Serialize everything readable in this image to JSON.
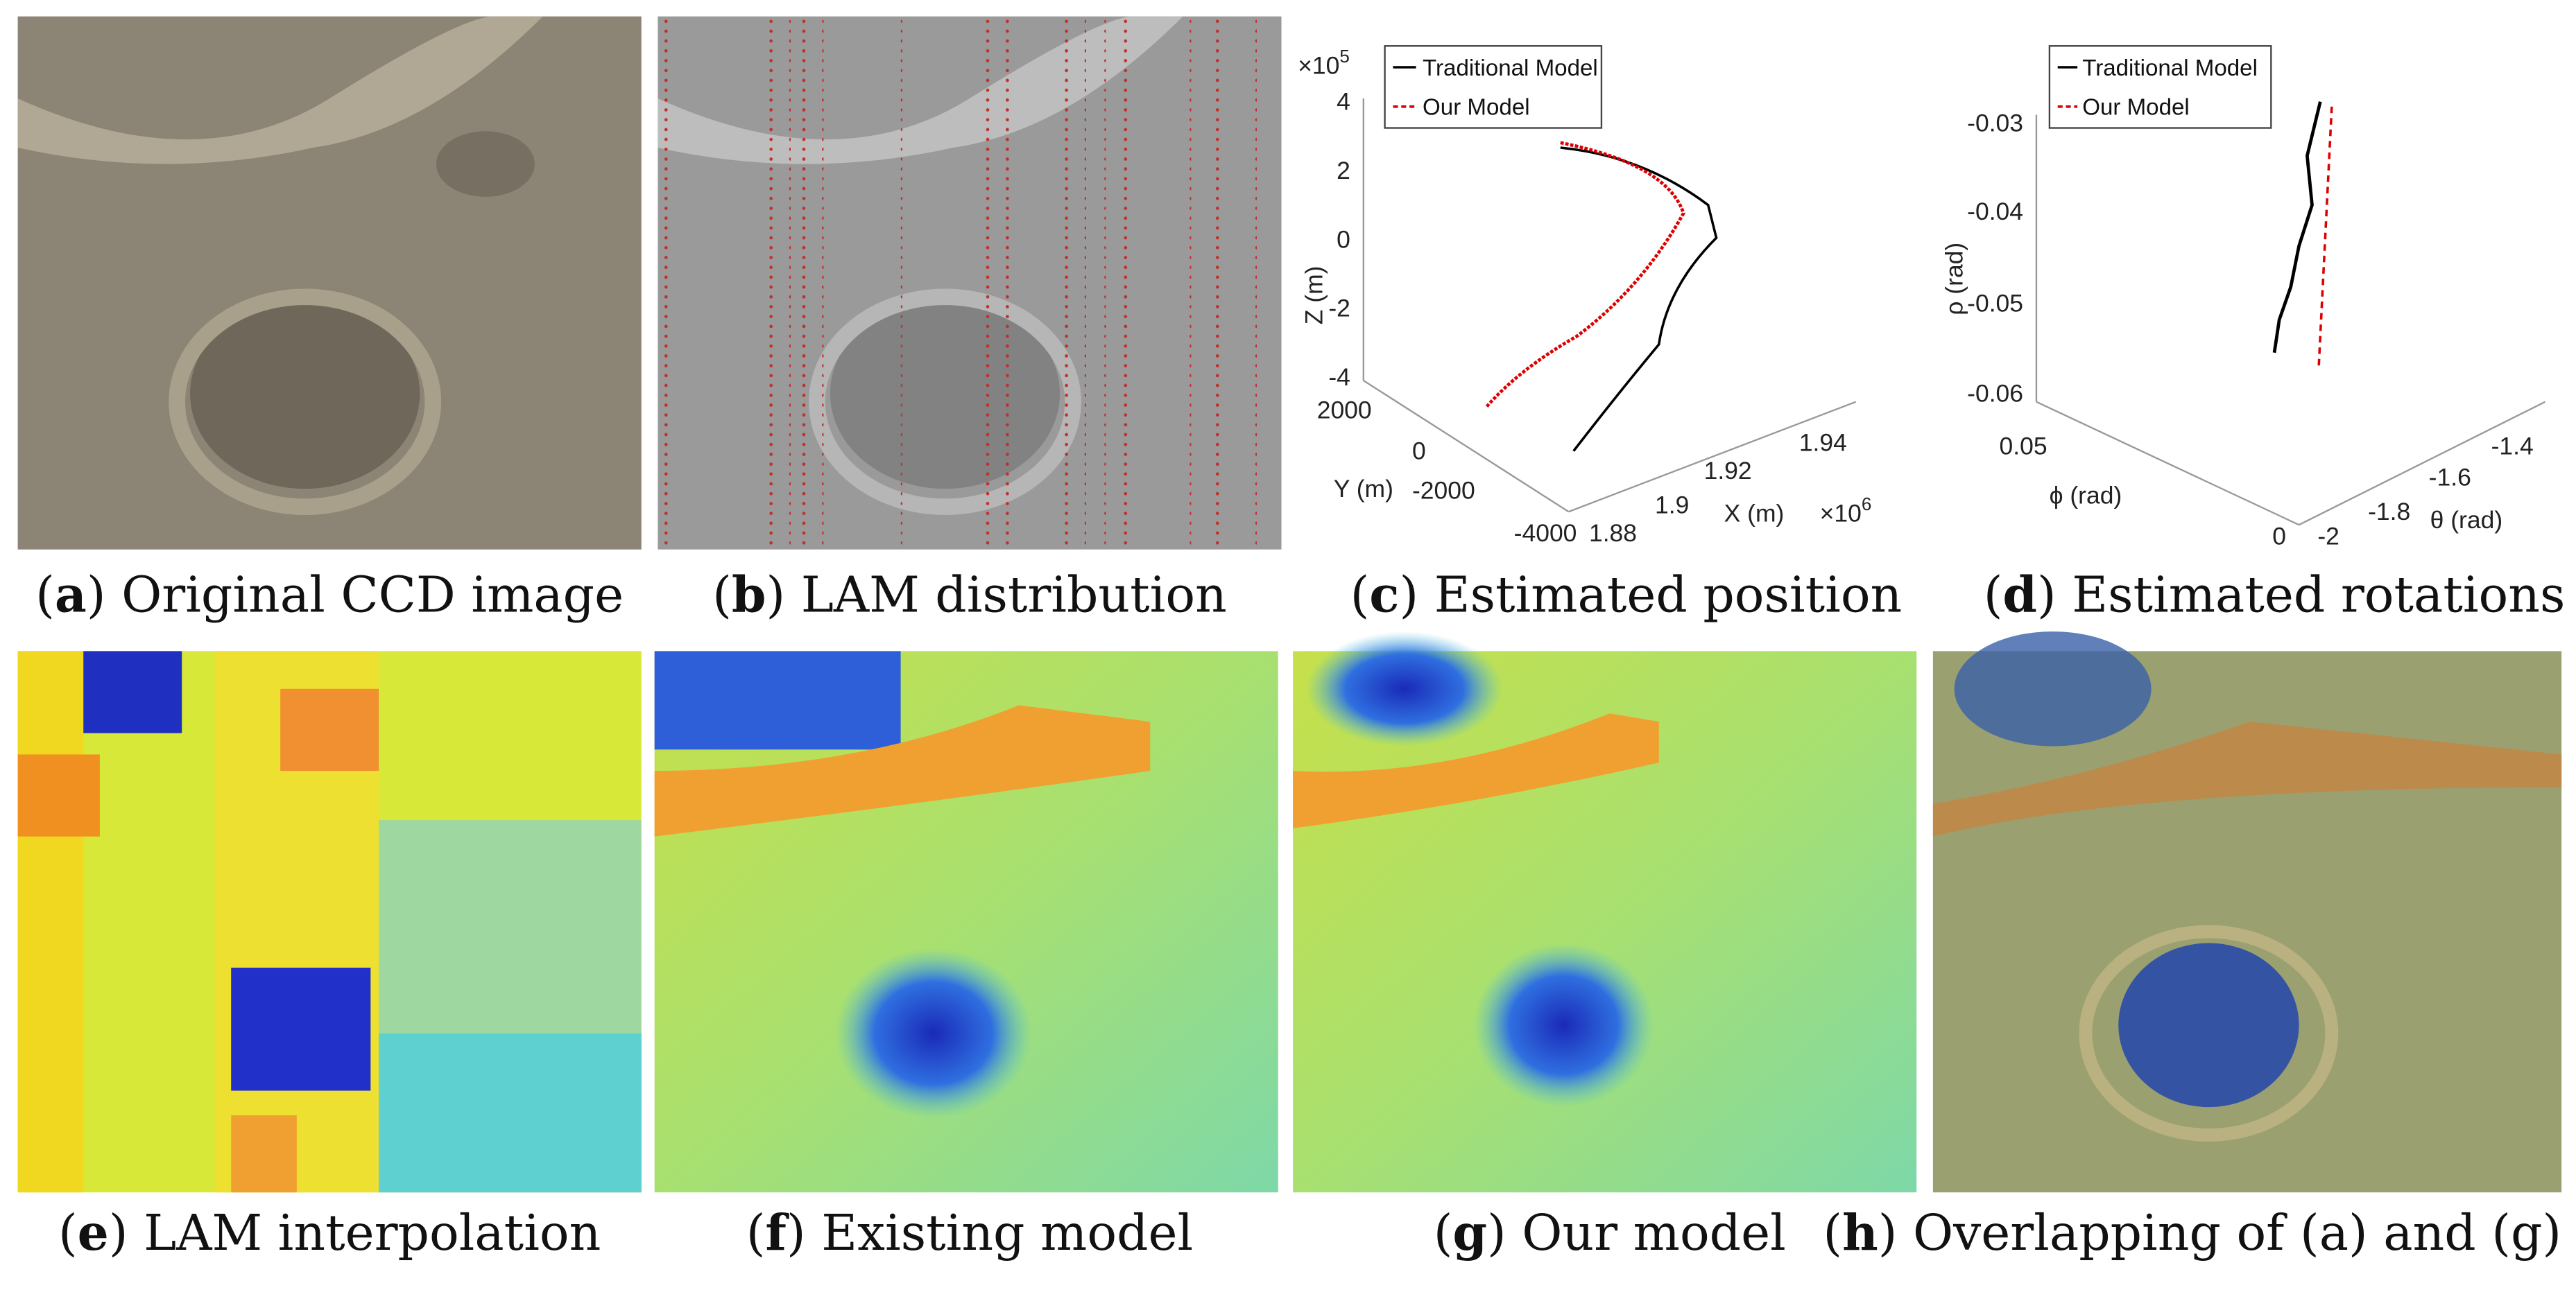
{
  "panels": [
    {
      "parts": [
        "(",
        "a",
        ") Original CCD image"
      ]
    },
    {
      "parts": [
        "(",
        "b",
        ") LAM distribution"
      ]
    },
    {
      "parts": [
        "(",
        "c",
        ") Estimated position"
      ]
    },
    {
      "parts": [
        "(",
        "d",
        ") Estimated rotations"
      ]
    },
    {
      "parts": [
        "(",
        "e",
        ") LAM interpolation"
      ]
    },
    {
      "parts": [
        "(",
        "f",
        ") Existing model"
      ]
    },
    {
      "parts": [
        "(",
        "g",
        ") Our model"
      ]
    },
    {
      "parts": [
        "(",
        "h",
        ") Overlapping of (a) and (g)"
      ]
    }
  ],
  "position_plot": {
    "legend": [
      "Traditional Model",
      "Our Model"
    ],
    "z_exponent": [
      "×10",
      "5"
    ],
    "x_exponent": [
      "×10",
      "6"
    ],
    "z_label": "Z (m)",
    "y_label": "Y (m)",
    "x_label": "X (m)",
    "z_ticks": [
      "4",
      "2",
      "0",
      "-2",
      "-4"
    ],
    "y_ticks": [
      "2000",
      "0",
      "-2000",
      "-4000"
    ],
    "x_ticks": [
      "1.88",
      "1.9",
      "1.92",
      "1.94"
    ]
  },
  "rotation_plot": {
    "legend": [
      "Traditional Model",
      "Our Model"
    ],
    "rho_label": "ρ (rad)",
    "phi_label": "ϕ (rad)",
    "theta_label": "θ (rad)",
    "rho_ticks": [
      "-0.03",
      "-0.04",
      "-0.05",
      "-0.06"
    ],
    "phi_ticks": [
      "0.05",
      "0"
    ],
    "theta_ticks": [
      "-2",
      "-1.8",
      "-1.6",
      "-1.4"
    ]
  }
}
